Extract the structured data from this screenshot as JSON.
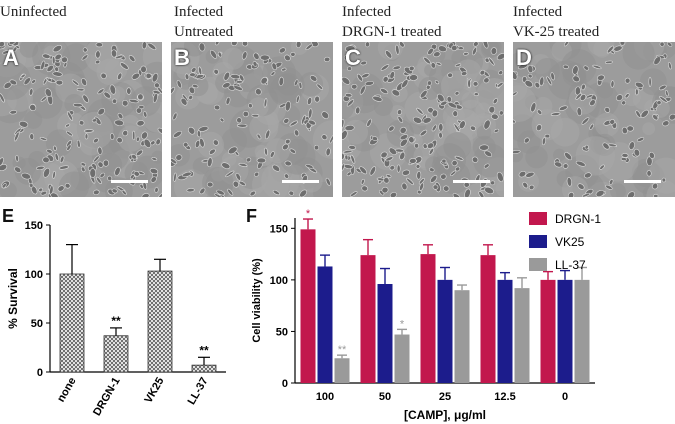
{
  "panels": [
    {
      "letter": "A",
      "caption_line1": "Uninfected",
      "caption_line2": ""
    },
    {
      "letter": "B",
      "caption_line1": "Infected",
      "caption_line2": "Untreated"
    },
    {
      "letter": "C",
      "caption_line1": "Infected",
      "caption_line2": "DRGN-1 treated"
    },
    {
      "letter": "D",
      "caption_line1": "Infected",
      "caption_line2": "VK-25 treated"
    }
  ],
  "chart_data": [
    {
      "panel": "E",
      "type": "bar",
      "categories": [
        "none",
        "DRGN-1",
        "VK25",
        "LL-37"
      ],
      "values": [
        100,
        37,
        103,
        7
      ],
      "errors": [
        30,
        8,
        12,
        8
      ],
      "annotations": [
        "",
        "**",
        "",
        "**"
      ],
      "ylabel": "% Survival",
      "ylim": [
        0,
        150
      ],
      "yticks": [
        "0",
        "50",
        "100",
        "150"
      ],
      "bar_pattern": "crosshatch"
    },
    {
      "panel": "F",
      "type": "bar",
      "categories": [
        "100",
        "50",
        "25",
        "12.5",
        "0"
      ],
      "xlabel": "[CAMP], μg/ml",
      "ylabel": "Cell viability (%)",
      "ylim": [
        0,
        160
      ],
      "yticks": [
        "0",
        "50",
        "100",
        "150"
      ],
      "legend_position": "top-right",
      "series": [
        {
          "name": "DRGN-1",
          "color": "#c2174d",
          "values": [
            149,
            124,
            125,
            124,
            100
          ],
          "errors": [
            10,
            15,
            9,
            10,
            8
          ],
          "annotations": [
            "*",
            "",
            "",
            "",
            ""
          ]
        },
        {
          "name": "VK25",
          "color": "#1c1c8c",
          "values": [
            113,
            96,
            100,
            100,
            100
          ],
          "errors": [
            11,
            15,
            12,
            7,
            9
          ],
          "annotations": [
            "",
            "",
            "",
            "",
            ""
          ]
        },
        {
          "name": "LL-37",
          "color": "#9a9a9a",
          "values": [
            24,
            47,
            90,
            92,
            100
          ],
          "errors": [
            3,
            5,
            5,
            10,
            12
          ],
          "annotations": [
            "**",
            "*",
            "",
            "",
            ""
          ]
        }
      ]
    }
  ]
}
